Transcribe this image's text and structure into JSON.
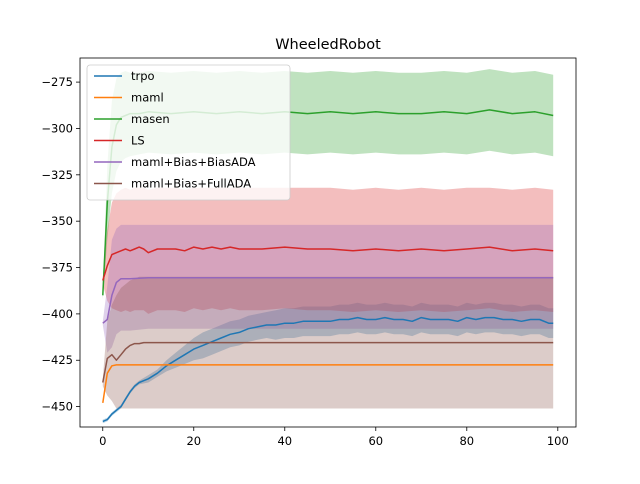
{
  "chart_data": {
    "type": "line",
    "title": "WheeledRobot",
    "xlabel": "",
    "ylabel": "",
    "xlim": [
      -5,
      104
    ],
    "ylim": [
      -461,
      -262
    ],
    "xticks": [
      0,
      20,
      40,
      60,
      80,
      100
    ],
    "yticks": [
      -275,
      -300,
      -325,
      -350,
      -375,
      -400,
      -425,
      -450
    ],
    "legend_position": "top-left",
    "grid": false,
    "series": [
      {
        "name": "trpo",
        "color": "#1f77b4",
        "x": [
          0,
          1,
          2,
          3,
          4,
          5,
          6,
          7,
          8,
          10,
          12,
          14,
          16,
          18,
          20,
          22,
          24,
          26,
          28,
          30,
          32,
          34,
          36,
          38,
          40,
          42,
          44,
          46,
          48,
          50,
          52,
          54,
          56,
          58,
          60,
          62,
          64,
          66,
          68,
          70,
          72,
          74,
          76,
          78,
          80,
          82,
          84,
          86,
          88,
          90,
          92,
          94,
          96,
          98,
          99
        ],
        "y": [
          -458,
          -457,
          -454,
          -452,
          -450,
          -446,
          -442,
          -439,
          -437,
          -435,
          -432,
          -428,
          -425,
          -422,
          -419,
          -417,
          -415,
          -413,
          -411,
          -410,
          -408,
          -407,
          -406,
          -406,
          -405,
          -405,
          -404,
          -404,
          -404,
          -404,
          -403,
          -403,
          -402,
          -403,
          -403,
          -402,
          -403,
          -403,
          -404,
          -402,
          -403,
          -403,
          -403,
          -404,
          -402,
          -403,
          -402,
          -402,
          -403,
          -403,
          -404,
          -403,
          -403,
          -405,
          -405
        ],
        "band_upper": [
          -457,
          -456,
          -453,
          -451,
          -449,
          -445,
          -441,
          -438,
          -436,
          -433,
          -430,
          -425,
          -421,
          -417,
          -413,
          -410,
          -408,
          -406,
          -404,
          -403,
          -401,
          -400,
          -399,
          -398,
          -397,
          -397,
          -396,
          -396,
          -396,
          -396,
          -395,
          -395,
          -394,
          -395,
          -395,
          -394,
          -395,
          -395,
          -396,
          -394,
          -395,
          -395,
          -395,
          -396,
          -394,
          -395,
          -394,
          -394,
          -395,
          -395,
          -396,
          -395,
          -395,
          -397,
          -397
        ],
        "band_lower": [
          -459,
          -458,
          -455,
          -453,
          -451,
          -447,
          -443,
          -440,
          -438,
          -437,
          -434,
          -431,
          -429,
          -427,
          -425,
          -424,
          -422,
          -420,
          -418,
          -417,
          -415,
          -414,
          -413,
          -414,
          -413,
          -413,
          -412,
          -412,
          -412,
          -412,
          -411,
          -411,
          -410,
          -411,
          -411,
          -410,
          -411,
          -411,
          -412,
          -410,
          -411,
          -411,
          -411,
          -412,
          -410,
          -411,
          -410,
          -410,
          -411,
          -411,
          -412,
          -411,
          -411,
          -413,
          -413
        ]
      },
      {
        "name": "maml",
        "color": "#ff7f0e",
        "x": [
          0,
          1,
          2,
          3,
          5,
          10,
          20,
          40,
          60,
          80,
          99
        ],
        "y": [
          -448,
          -432,
          -428,
          -427.5,
          -427.5,
          -427.5,
          -427.5,
          -427.5,
          -427.5,
          -427.5,
          -427.5
        ],
        "band_upper": [
          -448,
          -432,
          -428,
          -427.5,
          -427.5,
          -427.5,
          -427.5,
          -427.5,
          -427.5,
          -427.5,
          -427.5
        ],
        "band_lower": [
          -448,
          -432,
          -428,
          -427.5,
          -427.5,
          -427.5,
          -427.5,
          -427.5,
          -427.5,
          -427.5,
          -427.5
        ]
      },
      {
        "name": "masen",
        "color": "#2ca02c",
        "x": [
          0,
          1,
          2,
          3,
          4,
          5,
          6,
          8,
          10,
          15,
          20,
          25,
          30,
          35,
          40,
          45,
          50,
          55,
          60,
          65,
          70,
          75,
          80,
          85,
          90,
          95,
          99
        ],
        "y": [
          -390,
          -340,
          -310,
          -298,
          -294,
          -293,
          -292,
          -292,
          -291,
          -292,
          -291,
          -292,
          -291,
          -292,
          -291,
          -292,
          -291,
          -292,
          -291,
          -292,
          -292,
          -291,
          -292,
          -290,
          -292,
          -291,
          -293
        ],
        "band_upper": [
          -388,
          -320,
          -285,
          -273,
          -270,
          -269,
          -270,
          -270,
          -269,
          -270,
          -269,
          -270,
          -269,
          -270,
          -269,
          -270,
          -269,
          -270,
          -269,
          -270,
          -270,
          -269,
          -270,
          -268,
          -270,
          -269,
          -271
        ],
        "band_lower": [
          -392,
          -360,
          -335,
          -323,
          -318,
          -316,
          -315,
          -314,
          -313,
          -314,
          -313,
          -314,
          -313,
          -314,
          -313,
          -314,
          -313,
          -314,
          -313,
          -314,
          -314,
          -313,
          -314,
          -312,
          -314,
          -313,
          -315
        ]
      },
      {
        "name": "LS",
        "color": "#d62728",
        "x": [
          0,
          1,
          2,
          3,
          4,
          5,
          6,
          7,
          8,
          9,
          10,
          12,
          14,
          16,
          18,
          20,
          22,
          24,
          26,
          28,
          30,
          35,
          40,
          45,
          50,
          55,
          60,
          65,
          70,
          75,
          80,
          85,
          90,
          95,
          99
        ],
        "y": [
          -382,
          -374,
          -368,
          -367,
          -366,
          -365,
          -366,
          -365,
          -364,
          -365,
          -367,
          -365,
          -365,
          -365,
          -366,
          -364,
          -365,
          -364,
          -365,
          -364,
          -365,
          -365,
          -364,
          -365,
          -365,
          -366,
          -365,
          -366,
          -365,
          -366,
          -365,
          -364,
          -366,
          -365,
          -366
        ],
        "band_upper": [
          -380,
          -355,
          -340,
          -335,
          -333,
          -332,
          -333,
          -332,
          -332,
          -332,
          -333,
          -332,
          -332,
          -332,
          -333,
          -332,
          -332,
          -332,
          -332,
          -332,
          -332,
          -332,
          -332,
          -332,
          -332,
          -333,
          -332,
          -333,
          -332,
          -333,
          -332,
          -332,
          -333,
          -332,
          -333
        ],
        "band_lower": [
          -384,
          -393,
          -397,
          -398,
          -399,
          -398,
          -399,
          -398,
          -398,
          -398,
          -400,
          -398,
          -398,
          -398,
          -399,
          -397,
          -398,
          -397,
          -398,
          -397,
          -398,
          -398,
          -397,
          -398,
          -398,
          -399,
          -398,
          -399,
          -398,
          -399,
          -398,
          -397,
          -399,
          -398,
          -399
        ]
      },
      {
        "name": "maml+Bias+BiasADA",
        "color": "#9467bd",
        "x": [
          0,
          1,
          2,
          3,
          4,
          6,
          10,
          20,
          40,
          60,
          80,
          99
        ],
        "y": [
          -405,
          -403,
          -390,
          -383,
          -381,
          -381,
          -380.5,
          -380.5,
          -380.5,
          -380.5,
          -380.5,
          -380.5
        ],
        "band_upper": [
          -404,
          -385,
          -360,
          -354,
          -352,
          -352,
          -352,
          -352,
          -352,
          -352,
          -352,
          -352
        ],
        "band_lower": [
          -406,
          -421,
          -418,
          -411,
          -409,
          -409,
          -408,
          -408,
          -408,
          -408,
          -408,
          -408
        ]
      },
      {
        "name": "maml+Bias+FullADA",
        "color": "#8c564b",
        "x": [
          0,
          1,
          2,
          3,
          4,
          5,
          6,
          7,
          8,
          9,
          10,
          12,
          14,
          16,
          18,
          20,
          25,
          30,
          40,
          50,
          60,
          70,
          80,
          90,
          99
        ],
        "y": [
          -437,
          -424,
          -422,
          -425,
          -422,
          -419,
          -417,
          -416,
          -416,
          -415.5,
          -415.5,
          -415.5,
          -415.5,
          -415.5,
          -415.5,
          -415.5,
          -415.5,
          -415.5,
          -415.5,
          -415.5,
          -415.5,
          -415.5,
          -415.5,
          -415.5,
          -415.5
        ],
        "band_upper": [
          -435,
          -404,
          -395,
          -390,
          -386,
          -384,
          -382,
          -381,
          -380,
          -380,
          -380,
          -380,
          -380,
          -380,
          -380,
          -380,
          -380,
          -380,
          -380,
          -380,
          -380,
          -380,
          -380,
          -380,
          -380
        ],
        "band_lower": [
          -439,
          -444,
          -447,
          -451,
          -451,
          -451,
          -451,
          -451,
          -451,
          -451,
          -451,
          -451,
          -451,
          -451,
          -451,
          -451,
          -451,
          -451,
          -451,
          -451,
          -451,
          -451,
          -451,
          -451,
          -451
        ]
      }
    ]
  }
}
